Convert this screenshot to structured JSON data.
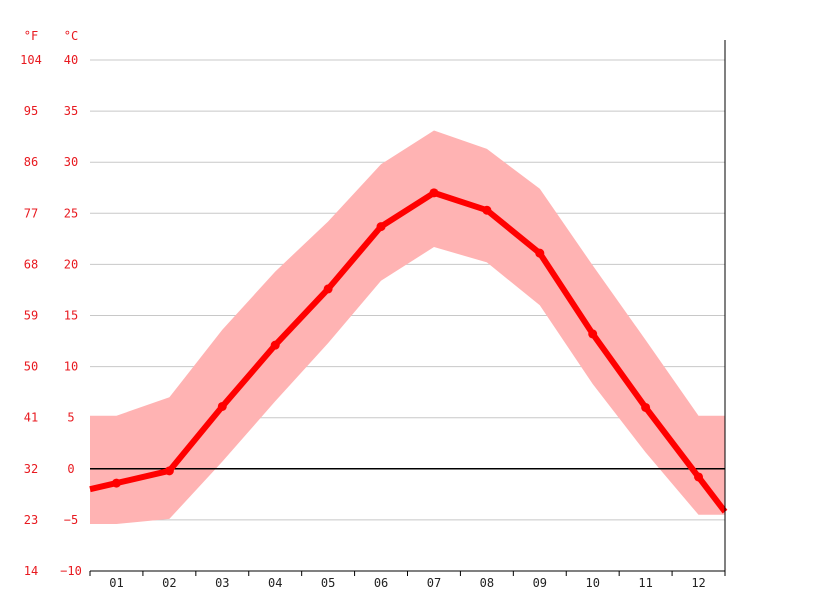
{
  "chart_data": {
    "type": "line",
    "title": "",
    "xlabel": "",
    "ylabel": "",
    "units": {
      "fahrenheit": "°F",
      "celsius": "°C"
    },
    "categories": [
      "01",
      "02",
      "03",
      "04",
      "05",
      "06",
      "07",
      "08",
      "09",
      "10",
      "11",
      "12"
    ],
    "y_ticks_celsius": [
      "40",
      "35",
      "30",
      "25",
      "20",
      "15",
      "10",
      "5",
      "0",
      "−5",
      "−10"
    ],
    "y_ticks_fahrenheit": [
      "104",
      "95",
      "86",
      "77",
      "68",
      "59",
      "50",
      "41",
      "32",
      "23",
      "14"
    ],
    "ylim": [
      -10,
      40
    ],
    "grid": true,
    "series": [
      {
        "values": [
          -1.4,
          -0.2,
          6.1,
          12.1,
          17.6,
          23.7,
          27.0,
          25.3,
          21.1,
          13.2,
          6.0,
          -0.8
        ]
      }
    ],
    "range_band": {
      "upper": [
        5.2,
        7.0,
        13.6,
        19.3,
        24.2,
        29.8,
        33.1,
        31.3,
        27.4,
        19.9,
        12.6,
        5.2
      ],
      "lower": [
        -5.4,
        -4.9,
        0.7,
        6.6,
        12.3,
        18.4,
        21.7,
        20.2,
        16.0,
        8.3,
        1.6,
        -4.5
      ]
    },
    "colors": {
      "line": "#ff0000",
      "band": "#ffb3b3",
      "axis_text": "#e8191f",
      "grid": "#c8c8c8",
      "zero_line": "#000000"
    }
  }
}
